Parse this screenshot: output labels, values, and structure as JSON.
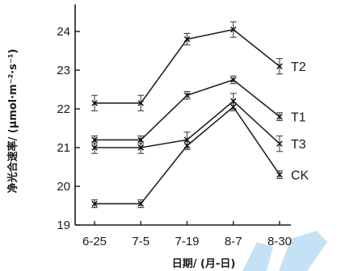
{
  "chart_data": {
    "type": "line",
    "categories": [
      "6-25",
      "7-5",
      "7-19",
      "8-7",
      "8-30"
    ],
    "ylabel": "净光合速率/ (μmol·m⁻²·s⁻¹)",
    "xlabel": "日期/ (月-日)",
    "ylim": [
      19,
      24.7
    ],
    "yticks": [
      19,
      20,
      21,
      22,
      23,
      24
    ],
    "grid": false,
    "series": [
      {
        "name": "T2",
        "values": [
          22.15,
          22.15,
          23.8,
          24.05,
          23.1
        ],
        "errors": [
          0.2,
          0.2,
          0.15,
          0.2,
          0.2
        ],
        "marker": "x"
      },
      {
        "name": "T1",
        "values": [
          21.2,
          21.2,
          22.35,
          22.75,
          21.8
        ],
        "errors": [
          0.1,
          0.1,
          0.1,
          0.1,
          0.1
        ],
        "marker": "x"
      },
      {
        "name": "T3",
        "values": [
          21.0,
          21.0,
          21.2,
          22.2,
          21.1
        ],
        "errors": [
          0.15,
          0.15,
          0.2,
          0.2,
          0.2
        ],
        "marker": "x"
      },
      {
        "name": "CK",
        "values": [
          19.55,
          19.55,
          21.05,
          22.05,
          20.3
        ],
        "errors": [
          0.1,
          0.1,
          0.1,
          0.1,
          0.1
        ],
        "marker": "x"
      }
    ]
  }
}
